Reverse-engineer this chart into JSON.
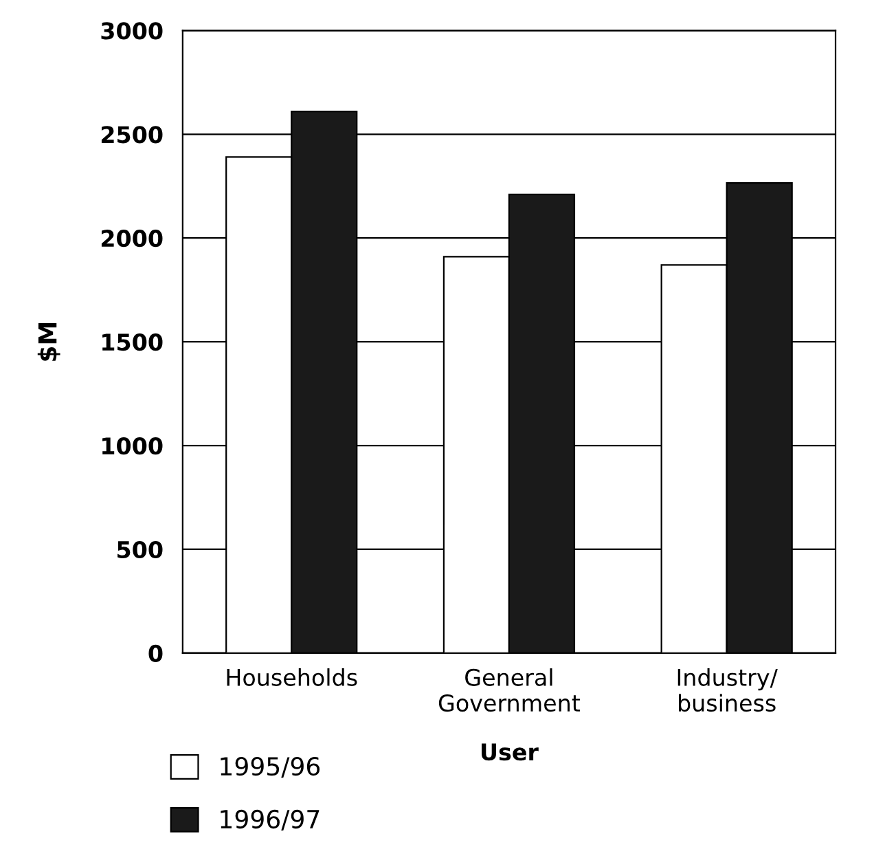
{
  "chart_data": {
    "type": "bar",
    "xlabel": "User",
    "ylabel": "$M",
    "categories": [
      "Households",
      "General\nGovernment",
      "Industry/\nbusiness"
    ],
    "series": [
      {
        "name": "1995/96",
        "color": "#ffffff",
        "values": [
          2390,
          1910,
          1870
        ]
      },
      {
        "name": "1996/97",
        "color": "#1a1a1a",
        "values": [
          2610,
          2210,
          2265
        ]
      }
    ],
    "ylim": [
      0,
      3000
    ],
    "yticks": [
      0,
      500,
      1000,
      1500,
      2000,
      2500,
      3000
    ],
    "grid": "y",
    "legend": "bottom left"
  }
}
